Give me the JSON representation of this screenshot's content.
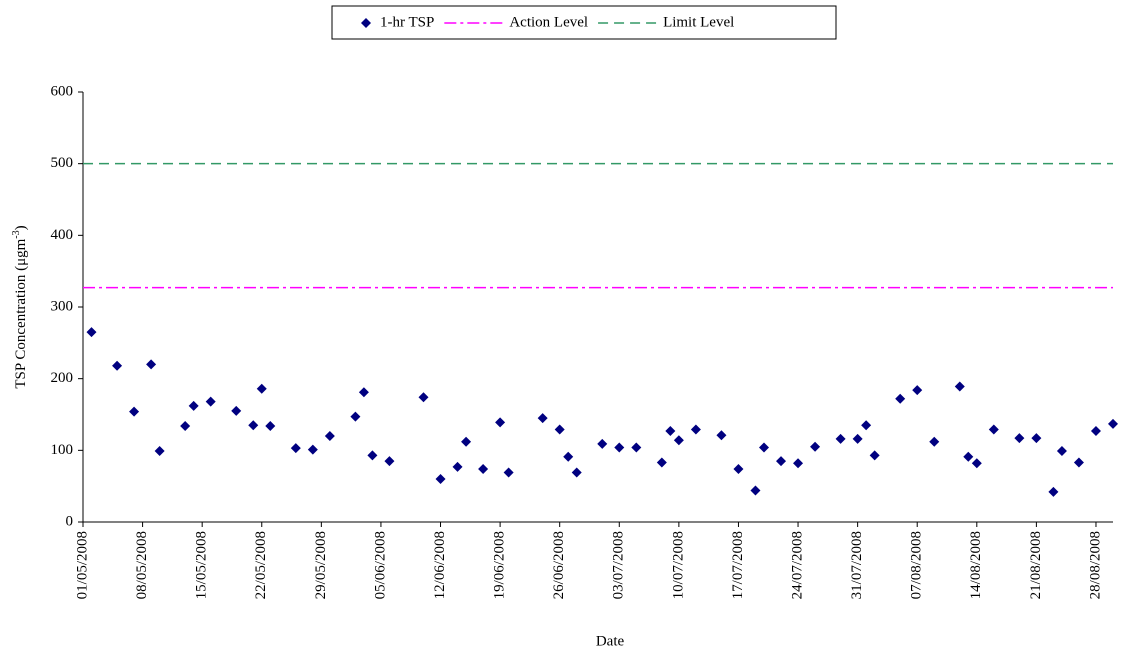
{
  "chart_data": {
    "type": "scatter",
    "x_label": "Date",
    "y_label": [
      "TSP Concentration (μgm",
      "-3",
      ")"
    ],
    "xlim": [
      "01/05/2008",
      "30/08/2008"
    ],
    "xticks": [
      "01/05/2008",
      "08/05/2008",
      "15/05/2008",
      "22/05/2008",
      "29/05/2008",
      "05/06/2008",
      "12/06/2008",
      "19/06/2008",
      "26/06/2008",
      "03/07/2008",
      "10/07/2008",
      "17/07/2008",
      "24/07/2008",
      "31/07/2008",
      "07/08/2008",
      "14/08/2008",
      "21/08/2008",
      "28/08/2008"
    ],
    "ylim": [
      0,
      600
    ],
    "yticks": [
      0,
      100,
      200,
      300,
      400,
      500,
      600
    ],
    "legend": "top",
    "series": [
      {
        "name": "1-hr TSP",
        "color": "#000080",
        "marker": "diamond",
        "x": [
          "02/05/2008",
          "05/05/2008",
          "07/05/2008",
          "09/05/2008",
          "10/05/2008",
          "13/05/2008",
          "14/05/2008",
          "16/05/2008",
          "19/05/2008",
          "21/05/2008",
          "22/05/2008",
          "23/05/2008",
          "26/05/2008",
          "28/05/2008",
          "30/05/2008",
          "02/06/2008",
          "03/06/2008",
          "04/06/2008",
          "06/06/2008",
          "10/06/2008",
          "12/06/2008",
          "14/06/2008",
          "15/06/2008",
          "17/06/2008",
          "19/06/2008",
          "20/06/2008",
          "24/06/2008",
          "26/06/2008",
          "27/06/2008",
          "28/06/2008",
          "01/07/2008",
          "03/07/2008",
          "05/07/2008",
          "08/07/2008",
          "09/07/2008",
          "10/07/2008",
          "12/07/2008",
          "15/07/2008",
          "17/07/2008",
          "19/07/2008",
          "20/07/2008",
          "22/07/2008",
          "24/07/2008",
          "26/07/2008",
          "29/07/2008",
          "31/07/2008",
          "01/08/2008",
          "02/08/2008",
          "05/08/2008",
          "07/08/2008",
          "09/08/2008",
          "12/08/2008",
          "13/08/2008",
          "14/08/2008",
          "16/08/2008",
          "19/08/2008",
          "21/08/2008",
          "23/08/2008",
          "24/08/2008",
          "26/08/2008",
          "28/08/2008",
          "30/08/2008"
        ],
        "values": [
          265,
          218,
          154,
          220,
          99,
          134,
          162,
          168,
          155,
          135,
          186,
          134,
          103,
          101,
          120,
          147,
          181,
          93,
          85,
          174,
          60,
          77,
          112,
          74,
          139,
          69,
          145,
          129,
          91,
          69,
          109,
          104,
          104,
          83,
          127,
          114,
          129,
          121,
          74,
          44,
          104,
          85,
          82,
          105,
          116,
          116,
          135,
          93,
          172,
          184,
          112,
          189,
          91,
          82,
          129,
          117,
          117,
          42,
          99,
          83,
          127,
          137
        ]
      }
    ],
    "reference_lines": [
      {
        "name": "Action Level",
        "color": "#ff00ff",
        "dash": "dash-dot",
        "value": 327
      },
      {
        "name": "Limit Level",
        "color": "#339966",
        "dash": "dash",
        "value": 500
      }
    ]
  }
}
